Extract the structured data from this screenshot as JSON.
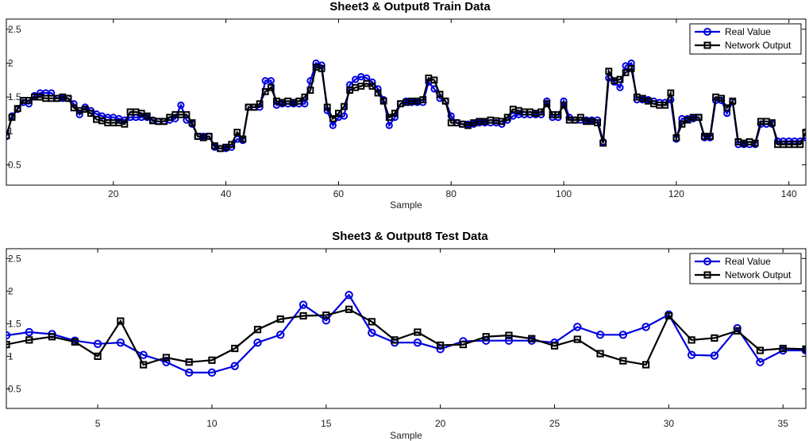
{
  "chart_data": [
    {
      "type": "line",
      "title": "Sheet3 & Output8 Train Data",
      "xlabel": "Sample",
      "ylabel": "",
      "xlim": [
        1,
        143
      ],
      "ylim": [
        0.2,
        2.65
      ],
      "xticks": [
        20,
        40,
        60,
        80,
        100,
        120,
        140
      ],
      "yticks": [
        0.5,
        1,
        1.5,
        2,
        2.5
      ],
      "legend": "top-right",
      "colors": {
        "Real Value": "#0000e0",
        "Network Output": "#000000"
      },
      "series": [
        {
          "name": "Real Value",
          "marker": "circle",
          "values": [
            0.92,
            1.22,
            1.32,
            1.42,
            1.4,
            1.52,
            1.56,
            1.56,
            1.56,
            1.48,
            1.48,
            1.48,
            1.4,
            1.24,
            1.35,
            1.3,
            1.25,
            1.22,
            1.2,
            1.2,
            1.18,
            1.16,
            1.2,
            1.2,
            1.2,
            1.2,
            1.16,
            1.14,
            1.14,
            1.16,
            1.18,
            1.38,
            1.16,
            1.1,
            0.92,
            0.92,
            0.92,
            0.76,
            0.74,
            0.74,
            0.76,
            0.88,
            0.86,
            1.35,
            1.35,
            1.35,
            1.74,
            1.74,
            1.38,
            1.4,
            1.4,
            1.4,
            1.4,
            1.4,
            1.74,
            2.0,
            1.97,
            1.3,
            1.08,
            1.2,
            1.22,
            1.68,
            1.76,
            1.8,
            1.78,
            1.72,
            1.62,
            1.46,
            1.08,
            1.2,
            1.4,
            1.44,
            1.42,
            1.42,
            1.42,
            1.72,
            1.62,
            1.48,
            1.44,
            1.22,
            1.12,
            1.1,
            1.1,
            1.1,
            1.12,
            1.12,
            1.12,
            1.12,
            1.1,
            1.16,
            1.22,
            1.24,
            1.24,
            1.24,
            1.24,
            1.24,
            1.44,
            1.2,
            1.2,
            1.44,
            1.2,
            1.16,
            1.16,
            1.16,
            1.16,
            1.16,
            0.84,
            1.78,
            1.72,
            1.64,
            1.96,
            2.0,
            1.46,
            1.46,
            1.46,
            1.44,
            1.42,
            1.42,
            1.46,
            0.88,
            1.18,
            1.18,
            1.18,
            1.2,
            0.9,
            0.9,
            1.45,
            1.45,
            1.26,
            1.43,
            0.8,
            0.8,
            0.8,
            0.8,
            1.1,
            1.1,
            1.1,
            0.85,
            0.85,
            0.85,
            0.85,
            0.85,
            0.9
          ]
        },
        {
          "name": "Network Output",
          "marker": "square",
          "values": [
            0.93,
            1.2,
            1.33,
            1.45,
            1.45,
            1.5,
            1.5,
            1.48,
            1.48,
            1.48,
            1.5,
            1.48,
            1.34,
            1.3,
            1.32,
            1.26,
            1.17,
            1.15,
            1.12,
            1.12,
            1.12,
            1.1,
            1.28,
            1.28,
            1.26,
            1.22,
            1.15,
            1.14,
            1.14,
            1.2,
            1.24,
            1.24,
            1.24,
            1.12,
            0.92,
            0.9,
            0.92,
            0.78,
            0.74,
            0.76,
            0.8,
            0.98,
            0.88,
            1.35,
            1.35,
            1.4,
            1.58,
            1.64,
            1.44,
            1.42,
            1.44,
            1.42,
            1.44,
            1.5,
            1.6,
            1.94,
            1.92,
            1.35,
            1.18,
            1.26,
            1.36,
            1.6,
            1.64,
            1.66,
            1.7,
            1.66,
            1.56,
            1.44,
            1.2,
            1.26,
            1.4,
            1.42,
            1.44,
            1.44,
            1.46,
            1.78,
            1.75,
            1.54,
            1.44,
            1.12,
            1.12,
            1.1,
            1.08,
            1.12,
            1.14,
            1.14,
            1.16,
            1.15,
            1.14,
            1.2,
            1.32,
            1.3,
            1.28,
            1.28,
            1.26,
            1.28,
            1.4,
            1.24,
            1.24,
            1.38,
            1.16,
            1.16,
            1.2,
            1.14,
            1.14,
            1.12,
            0.82,
            1.88,
            1.74,
            1.76,
            1.86,
            1.92,
            1.5,
            1.48,
            1.44,
            1.4,
            1.38,
            1.38,
            1.56,
            0.9,
            1.1,
            1.16,
            1.2,
            1.2,
            0.92,
            0.92,
            1.5,
            1.48,
            1.34,
            1.44,
            0.84,
            0.82,
            0.84,
            0.82,
            1.14,
            1.14,
            1.12,
            0.8,
            0.8,
            0.8,
            0.8,
            0.8,
            0.98
          ]
        }
      ]
    },
    {
      "type": "line",
      "title": "Sheet3 & Output8 Test Data",
      "xlabel": "Sample",
      "ylabel": "",
      "xlim": [
        1,
        36
      ],
      "ylim": [
        0.2,
        2.65
      ],
      "xticks": [
        5,
        10,
        15,
        20,
        25,
        30,
        35
      ],
      "yticks": [
        0.5,
        1,
        1.5,
        2,
        2.5
      ],
      "legend": "top-right",
      "colors": {
        "Real Value": "#0000e0",
        "Network Output": "#000000"
      },
      "series": [
        {
          "name": "Real Value",
          "marker": "circle",
          "values": [
            1.32,
            1.37,
            1.34,
            1.24,
            1.19,
            1.21,
            1.02,
            0.91,
            0.75,
            0.75,
            0.85,
            1.21,
            1.33,
            1.79,
            1.55,
            1.94,
            1.36,
            1.21,
            1.21,
            1.11,
            1.23,
            1.24,
            1.24,
            1.24,
            1.21,
            1.45,
            1.33,
            1.33,
            1.45,
            1.64,
            1.02,
            1.01,
            1.43,
            0.91,
            1.09,
            1.09
          ]
        },
        {
          "name": "Network Output",
          "marker": "square",
          "values": [
            1.18,
            1.25,
            1.3,
            1.22,
            1.0,
            1.54,
            0.87,
            0.98,
            0.91,
            0.94,
            1.12,
            1.41,
            1.57,
            1.62,
            1.63,
            1.72,
            1.53,
            1.25,
            1.37,
            1.17,
            1.18,
            1.3,
            1.32,
            1.27,
            1.16,
            1.26,
            1.04,
            0.93,
            0.87,
            1.62,
            1.25,
            1.28,
            1.39,
            1.09,
            1.12,
            1.11
          ]
        }
      ]
    }
  ]
}
